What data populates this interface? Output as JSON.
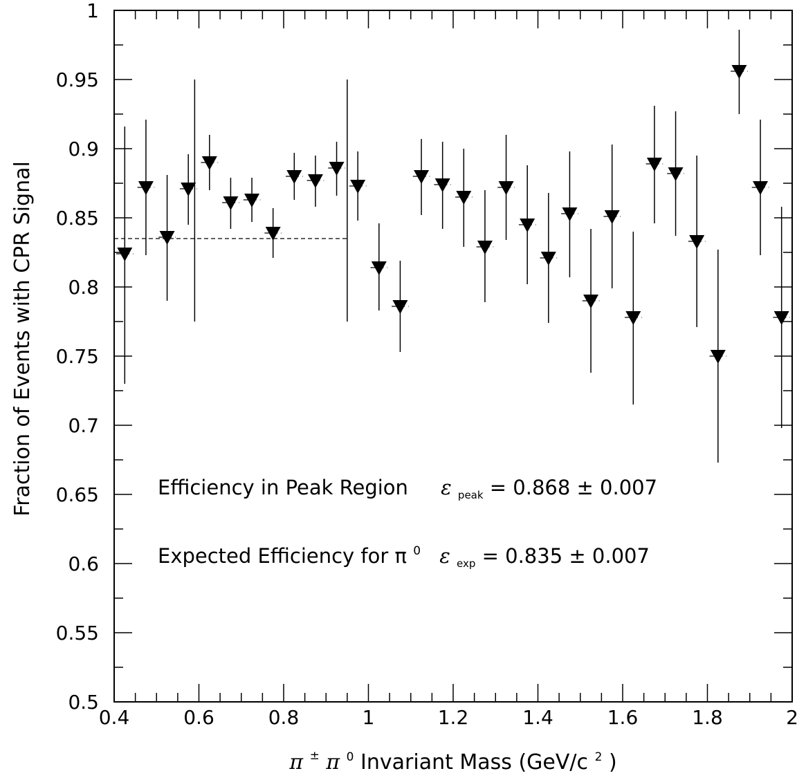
{
  "chart_data": {
    "type": "scatter",
    "title": "",
    "xlabel": {
      "pi": "π",
      "pm": "±",
      "pi0": "π",
      "zero": "0",
      "text": " Invariant Mass (GeV/c",
      "sq": "2",
      "close": ")"
    },
    "ylabel": "Fraction of Events with CPR Signal",
    "xlim": [
      0.4,
      2.0
    ],
    "ylim": [
      0.5,
      1.0
    ],
    "xticks": [
      {
        "v": 0.4,
        "label": "0.4"
      },
      {
        "v": 0.6,
        "label": "0.6"
      },
      {
        "v": 0.8,
        "label": "0.8"
      },
      {
        "v": 1.0,
        "label": "1"
      },
      {
        "v": 1.2,
        "label": "1.2"
      },
      {
        "v": 1.4,
        "label": "1.4"
      },
      {
        "v": 1.6,
        "label": "1.6"
      },
      {
        "v": 1.8,
        "label": "1.8"
      },
      {
        "v": 2.0,
        "label": "2"
      }
    ],
    "yticks": [
      {
        "v": 0.5,
        "label": "0.5"
      },
      {
        "v": 0.55,
        "label": "0.55"
      },
      {
        "v": 0.6,
        "label": "0.6"
      },
      {
        "v": 0.65,
        "label": "0.65"
      },
      {
        "v": 0.7,
        "label": "0.7"
      },
      {
        "v": 0.75,
        "label": "0.75"
      },
      {
        "v": 0.8,
        "label": "0.8"
      },
      {
        "v": 0.85,
        "label": "0.85"
      },
      {
        "v": 0.9,
        "label": "0.9"
      },
      {
        "v": 0.95,
        "label": "0.95"
      },
      {
        "v": 1.0,
        "label": "1"
      }
    ],
    "marker": "inverted-triangle",
    "bin_width": 0.05,
    "points": [
      {
        "x": 0.425,
        "y": 0.824,
        "lo": 0.73,
        "hi": 0.916
      },
      {
        "x": 0.475,
        "y": 0.872,
        "lo": 0.823,
        "hi": 0.921
      },
      {
        "x": 0.525,
        "y": 0.836,
        "lo": 0.79,
        "hi": 0.881
      },
      {
        "x": 0.575,
        "y": 0.871,
        "lo": 0.845,
        "hi": 0.896
      },
      {
        "x": 0.625,
        "y": 0.89,
        "lo": 0.87,
        "hi": 0.91
      },
      {
        "x": 0.675,
        "y": 0.861,
        "lo": 0.842,
        "hi": 0.879
      },
      {
        "x": 0.725,
        "y": 0.863,
        "lo": 0.847,
        "hi": 0.879
      },
      {
        "x": 0.775,
        "y": 0.839,
        "lo": 0.821,
        "hi": 0.857
      },
      {
        "x": 0.825,
        "y": 0.88,
        "lo": 0.863,
        "hi": 0.897
      },
      {
        "x": 0.875,
        "y": 0.877,
        "lo": 0.858,
        "hi": 0.895
      },
      {
        "x": 0.925,
        "y": 0.886,
        "lo": 0.866,
        "hi": 0.905
      },
      {
        "x": 0.975,
        "y": 0.873,
        "lo": 0.848,
        "hi": 0.898
      },
      {
        "x": 1.025,
        "y": 0.814,
        "lo": 0.783,
        "hi": 0.846
      },
      {
        "x": 1.075,
        "y": 0.786,
        "lo": 0.753,
        "hi": 0.819
      },
      {
        "x": 1.125,
        "y": 0.88,
        "lo": 0.852,
        "hi": 0.907
      },
      {
        "x": 1.175,
        "y": 0.874,
        "lo": 0.842,
        "hi": 0.905
      },
      {
        "x": 1.225,
        "y": 0.865,
        "lo": 0.829,
        "hi": 0.9
      },
      {
        "x": 1.275,
        "y": 0.829,
        "lo": 0.789,
        "hi": 0.87
      },
      {
        "x": 1.325,
        "y": 0.872,
        "lo": 0.834,
        "hi": 0.91
      },
      {
        "x": 1.375,
        "y": 0.845,
        "lo": 0.802,
        "hi": 0.888
      },
      {
        "x": 1.425,
        "y": 0.821,
        "lo": 0.774,
        "hi": 0.868
      },
      {
        "x": 1.475,
        "y": 0.853,
        "lo": 0.807,
        "hi": 0.898
      },
      {
        "x": 1.525,
        "y": 0.79,
        "lo": 0.738,
        "hi": 0.842
      },
      {
        "x": 1.575,
        "y": 0.851,
        "lo": 0.799,
        "hi": 0.903
      },
      {
        "x": 1.625,
        "y": 0.778,
        "lo": 0.715,
        "hi": 0.84
      },
      {
        "x": 1.675,
        "y": 0.889,
        "lo": 0.846,
        "hi": 0.931
      },
      {
        "x": 1.725,
        "y": 0.882,
        "lo": 0.837,
        "hi": 0.927
      },
      {
        "x": 1.775,
        "y": 0.833,
        "lo": 0.771,
        "hi": 0.895
      },
      {
        "x": 1.825,
        "y": 0.75,
        "lo": 0.673,
        "hi": 0.827
      },
      {
        "x": 1.875,
        "y": 0.956,
        "lo": 0.925,
        "hi": 0.986
      },
      {
        "x": 1.925,
        "y": 0.872,
        "lo": 0.823,
        "hi": 0.921
      },
      {
        "x": 1.975,
        "y": 0.778,
        "lo": 0.698,
        "hi": 0.858
      }
    ],
    "expected_line": {
      "y": 0.835,
      "x_from": 0.4,
      "x_to": 0.95,
      "lo": 0.775,
      "hi": 0.95,
      "style": "dashed"
    },
    "annotations": [
      {
        "label": "Efficiency in Peak Region",
        "symbol": "ε",
        "subscript": "peak",
        "value": " = 0.868 ± 0.007"
      },
      {
        "label": "Expected Efficiency for π",
        "label_sup": "0",
        "symbol": "ε",
        "subscript": "exp",
        "value": " = 0.835 ± 0.007"
      }
    ]
  }
}
